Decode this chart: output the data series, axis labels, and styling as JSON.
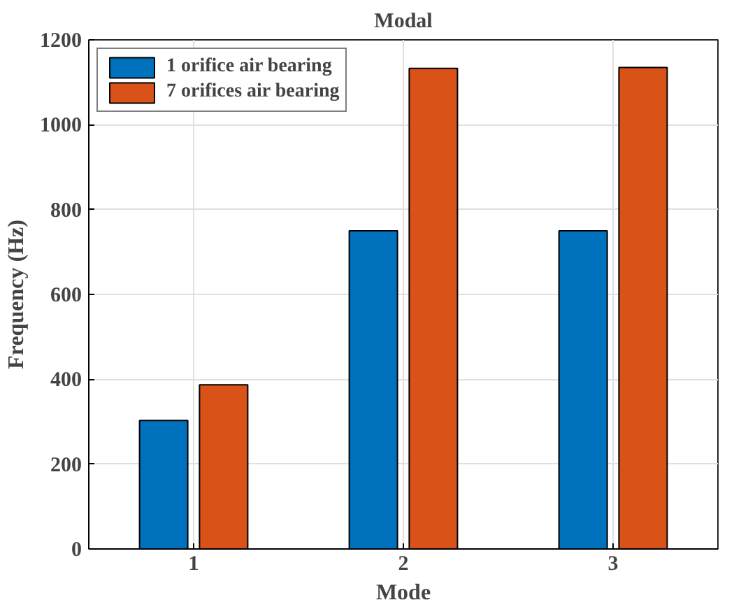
{
  "chart_data": {
    "type": "bar",
    "title": "Modal",
    "xlabel": "Mode",
    "ylabel": "Frequency (Hz)",
    "categories": [
      "1",
      "2",
      "3"
    ],
    "series": [
      {
        "name": "1 orifice air bearing",
        "color": "#0072bd",
        "values": [
          303,
          750,
          750
        ]
      },
      {
        "name": "7 orifices air bearing",
        "color": "#d95319",
        "values": [
          387,
          1133,
          1135
        ]
      }
    ],
    "ylim": [
      0,
      1200
    ],
    "yticks": [
      0,
      200,
      400,
      600,
      800,
      1000,
      1200
    ],
    "grid": true,
    "legend": "top left"
  }
}
